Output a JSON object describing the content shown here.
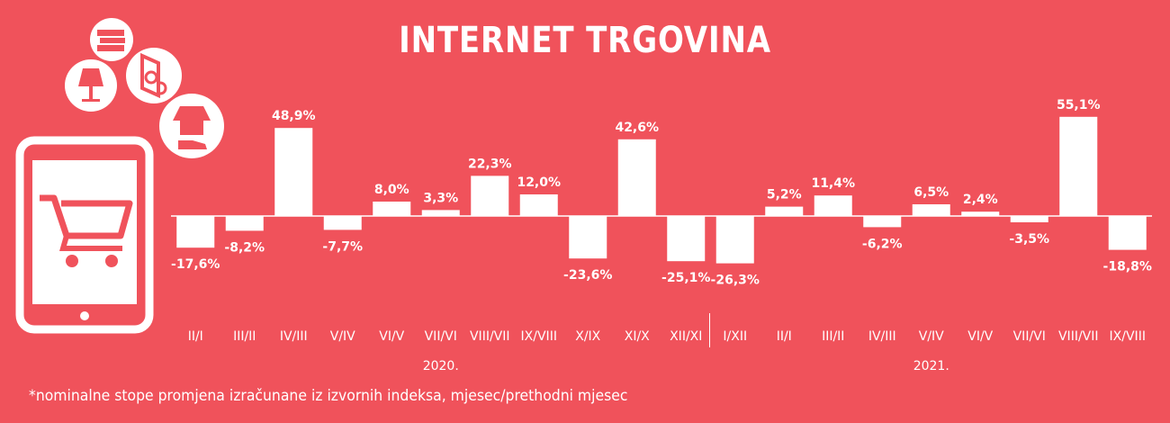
{
  "title": "INTERNET TRGOVINA",
  "footnote": "*nominalne stope promjena izračunane iz izvornih indeksa, mjesec/prethodni mjesec",
  "colors": {
    "background": "#f0525b",
    "bars": "#ffffff",
    "text": "#ffffff"
  },
  "icons": [
    "tablet-cart-icon",
    "books-icon",
    "lamp-icon",
    "washing-machine-icon",
    "clothes-icon"
  ],
  "chart_data": {
    "type": "bar",
    "categories": [
      "II/I",
      "III/II",
      "IV/III",
      "V/IV",
      "VI/V",
      "VII/VI",
      "VIII/VII",
      "IX/VIII",
      "X/IX",
      "XI/X",
      "XII/XI",
      "I/XII",
      "II/I",
      "III/II",
      "IV/III",
      "V/IV",
      "VI/V",
      "VII/VI",
      "VIII/VII",
      "IX/VIII"
    ],
    "values": [
      -17.6,
      -8.2,
      48.9,
      -7.7,
      8.0,
      3.3,
      22.3,
      12.0,
      -23.6,
      42.6,
      -25.1,
      -26.3,
      5.2,
      11.4,
      -6.2,
      6.5,
      2.4,
      -3.5,
      55.1,
      -18.8
    ],
    "value_labels": [
      "-17,6%",
      "-8,2%",
      "48,9%",
      "-7,7%",
      "8,0%",
      "3,3%",
      "22,3%",
      "12,0%",
      "-23,6%",
      "42,6%",
      "-25,1%",
      "-26,3%",
      "5,2%",
      "11,4%",
      "-6,2%",
      "6,5%",
      "2,4%",
      "-3,5%",
      "55,1%",
      "-18,8%"
    ],
    "groups": [
      {
        "label": "2020.",
        "start": 0,
        "end": 10
      },
      {
        "label": "2021.",
        "start": 11,
        "end": 19
      }
    ]
  }
}
